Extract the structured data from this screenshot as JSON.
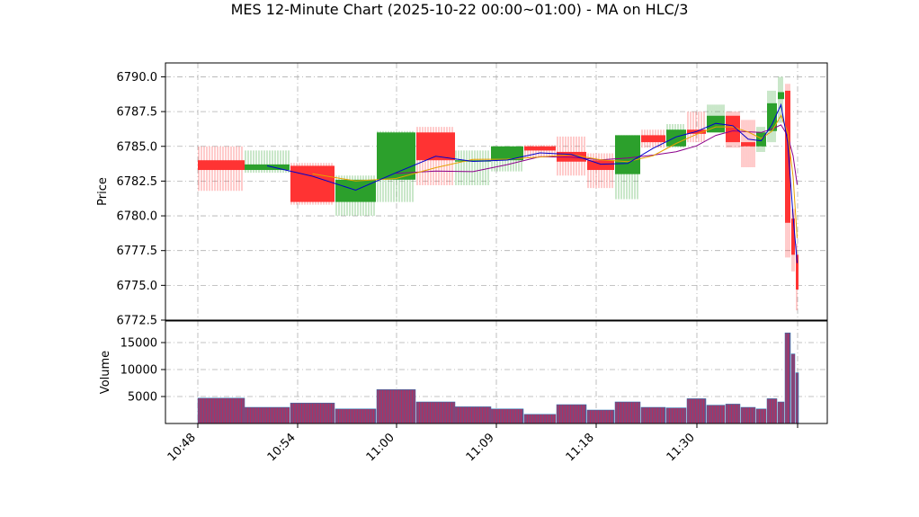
{
  "chart_data": {
    "type": "candlestick",
    "title": "MES 12-Minute Chart (2025-10-22 00:00~01:00) - MA on HLC/3",
    "price_panel": {
      "ylabel": "Price",
      "ylim": [
        6772.5,
        6791.0
      ],
      "yticks": [
        "6772.5",
        "6775.0",
        "6777.5",
        "6780.0",
        "6782.5",
        "6785.0",
        "6787.5",
        "6790.0"
      ],
      "grid": true
    },
    "volume_panel": {
      "ylabel": "Volume",
      "ylim": [
        0,
        19000
      ],
      "yticks": [
        "5000",
        "10000",
        "15000"
      ],
      "grid": true
    },
    "xlabel": "",
    "xticks": [
      "10:48",
      "10:54",
      "11:00",
      "11:09",
      "11:18",
      "11:30",
      ""
    ],
    "colors": {
      "up": "#2ca02c",
      "down": "#ff3333",
      "ma_fast": "#0000cc",
      "ma_mid": "#e6a100",
      "ma_slow": "#8b008b",
      "volume_face": "#b03060",
      "volume_edge": "#1f77b4"
    },
    "bars": [
      {
        "o": 6784.0,
        "h": 6785.0,
        "l": 6781.8,
        "c": 6783.3,
        "v": 4700
      },
      {
        "o": 6783.3,
        "h": 6784.7,
        "l": 6783.1,
        "c": 6783.7,
        "v": 3000
      },
      {
        "o": 6783.6,
        "h": 6783.8,
        "l": 6780.8,
        "c": 6781.0,
        "v": 3800
      },
      {
        "o": 6781.0,
        "h": 6782.9,
        "l": 6780.0,
        "c": 6782.6,
        "v": 2700
      },
      {
        "o": 6782.6,
        "h": 6786.1,
        "l": 6781.0,
        "c": 6786.0,
        "v": 6300
      },
      {
        "o": 6786.0,
        "h": 6786.4,
        "l": 6782.2,
        "c": 6784.0,
        "v": 4000
      },
      {
        "o": 6784.0,
        "h": 6784.7,
        "l": 6782.2,
        "c": 6784.0,
        "v": 3100
      },
      {
        "o": 6784.0,
        "h": 6785.0,
        "l": 6783.2,
        "c": 6785.0,
        "v": 2700
      },
      {
        "o": 6785.0,
        "h": 6785.1,
        "l": 6784.2,
        "c": 6784.7,
        "v": 1700
      },
      {
        "o": 6784.6,
        "h": 6785.7,
        "l": 6782.9,
        "c": 6783.9,
        "v": 3500
      },
      {
        "o": 6784.0,
        "h": 6784.5,
        "l": 6782.0,
        "c": 6783.3,
        "v": 2500
      },
      {
        "o": 6783.0,
        "h": 6785.8,
        "l": 6781.2,
        "c": 6785.8,
        "v": 4000
      },
      {
        "o": 6785.8,
        "h": 6786.2,
        "l": 6784.9,
        "c": 6785.3,
        "v": 3000
      },
      {
        "o": 6785.0,
        "h": 6786.6,
        "l": 6784.9,
        "c": 6786.2,
        "v": 2900
      },
      {
        "o": 6786.2,
        "h": 6787.5,
        "l": 6785.3,
        "c": 6785.9,
        "v": 4600
      },
      {
        "o": 6786.0,
        "h": 6788.0,
        "l": 6786.0,
        "c": 6787.2,
        "v": 3400
      },
      {
        "o": 6787.2,
        "h": 6787.5,
        "l": 6784.9,
        "c": 6785.3,
        "v": 3600
      },
      {
        "o": 6785.3,
        "h": 6786.9,
        "l": 6783.5,
        "c": 6785.0,
        "v": 3000
      },
      {
        "o": 6785.0,
        "h": 6786.4,
        "l": 6784.6,
        "c": 6786.0,
        "v": 2700
      },
      {
        "o": 6786.1,
        "h": 6789.0,
        "l": 6785.3,
        "c": 6788.1,
        "v": 4600
      },
      {
        "o": 6788.4,
        "h": 6790.0,
        "l": 6786.7,
        "c": 6788.9,
        "v": 4000
      },
      {
        "o": 6789.0,
        "h": 6789.5,
        "l": 6777.0,
        "c": 6779.5,
        "v": 16800
      },
      {
        "o": 6779.8,
        "h": 6780.5,
        "l": 6776.0,
        "c": 6777.2,
        "v": 12900
      },
      {
        "o": 6777.2,
        "h": 6778.0,
        "l": 6773.2,
        "c": 6774.7,
        "v": 9400
      }
    ]
  }
}
